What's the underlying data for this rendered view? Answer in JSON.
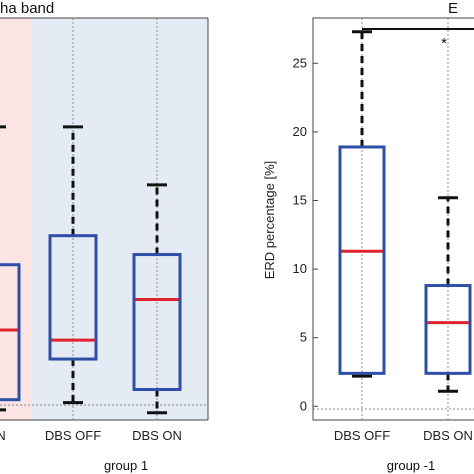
{
  "chart_data": [
    {
      "type": "box",
      "title_fragment": "ha band",
      "group_label": "group 1",
      "ylim": [
        -0.2,
        27.5
      ],
      "categories": [
        "ON",
        "DBS OFF",
        "DBS ON"
      ],
      "category_colors": [
        "#cc1f2a",
        "#2e4fa8",
        "#cc1f2a"
      ],
      "backgrounds": [
        {
          "from": 0,
          "to": 1,
          "color": "#fbe4e4",
          "note": "left partial column"
        },
        {
          "from": 1,
          "to": 3,
          "color": "#e4ebf4"
        }
      ],
      "boxes": [
        {
          "category": "ON",
          "whisker_low": 0.5,
          "q1": 1.2,
          "median": 6.0,
          "q3": 10.5,
          "whisker_high": 20
        },
        {
          "category": "DBS OFF",
          "whisker_low": 1.0,
          "q1": 4.0,
          "median": 5.3,
          "q3": 12.5,
          "whisker_high": 20.0
        },
        {
          "category": "DBS ON",
          "whisker_low": 0.3,
          "q1": 1.9,
          "median": 8.1,
          "q3": 11.2,
          "whisker_high": 16.0
        }
      ]
    },
    {
      "type": "box",
      "title_fragment": "E",
      "ylabel": "ERD percentage [%]",
      "group_label": "group -1",
      "ylim": [
        -1,
        28.3
      ],
      "yticks": [
        0,
        5,
        10,
        15,
        20,
        25
      ],
      "categories": [
        "DBS OFF",
        "DBS ON"
      ],
      "category_colors": [
        "#2e4fa8",
        "#cc1f2a"
      ],
      "significance": {
        "label": "*",
        "from": "DBS OFF",
        "to": "beyond"
      },
      "boxes": [
        {
          "category": "DBS OFF",
          "whisker_low": 2.2,
          "q1": 2.4,
          "median": 11.3,
          "q3": 18.9,
          "whisker_high": 27.3
        },
        {
          "category": "DBS ON",
          "whisker_low": 1.1,
          "q1": 2.4,
          "median": 6.1,
          "q3": 8.8,
          "whisker_high": 15.2
        }
      ]
    }
  ]
}
